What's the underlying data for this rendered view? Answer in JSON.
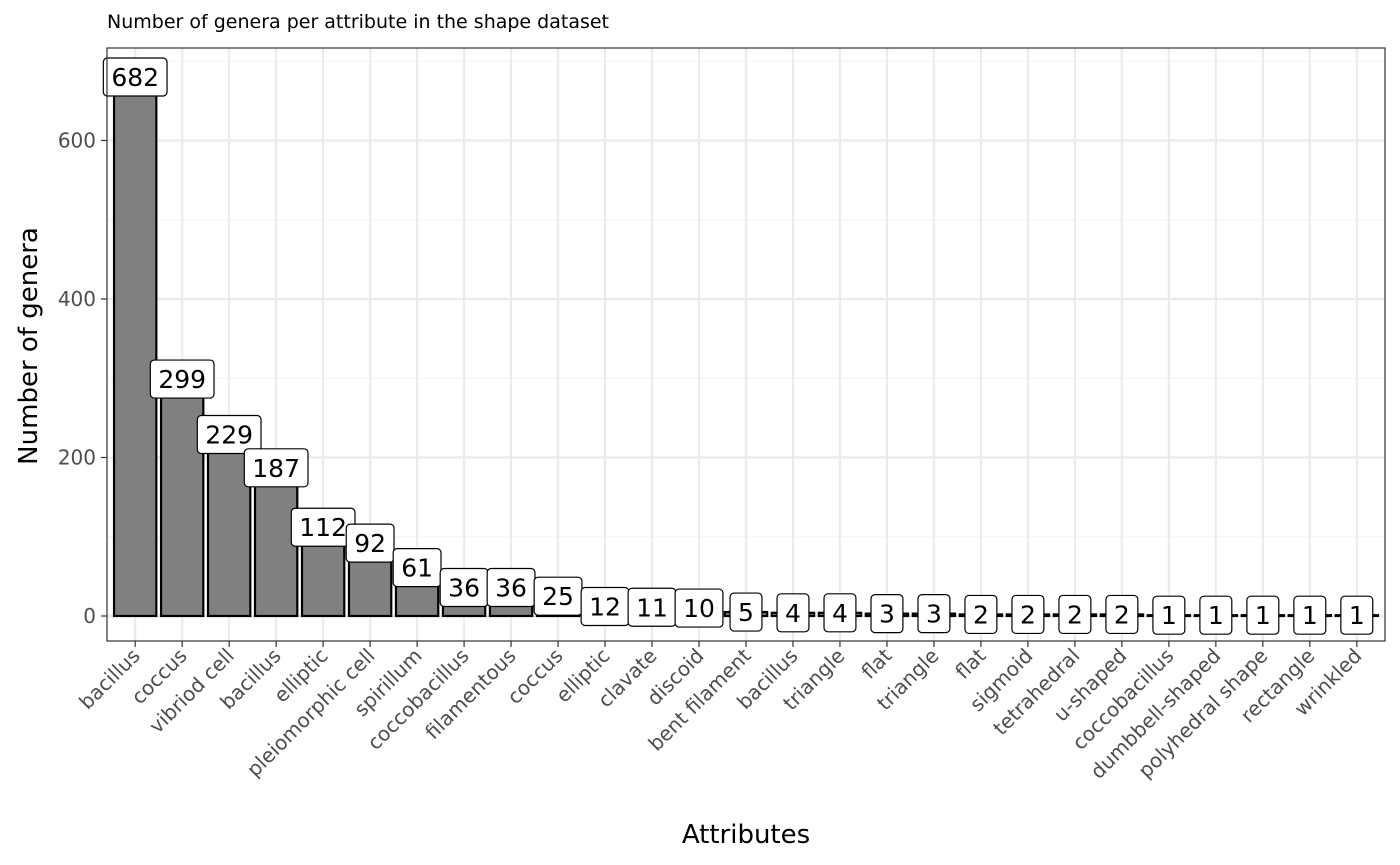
{
  "chart_data": {
    "type": "bar",
    "title": "Number of genera per attribute in the shape dataset",
    "xlabel": "Attributes",
    "ylabel": "Number of genera",
    "categories": [
      "bacillus",
      "coccus",
      "vibriod cell",
      "bacillus",
      "elliptic",
      "pleiomorphic cell",
      "spirillum",
      "coccobacillus",
      "filamentous",
      "coccus",
      "elliptic",
      "clavate",
      "discoid",
      "bent filament",
      "bacillus",
      "triangle",
      "flat",
      "triangle",
      "flat",
      "sigmoid",
      "tetrahedral",
      "u-shaped",
      "coccobacillus",
      "dumbbell-shaped",
      "polyhedral shape",
      "rectangle",
      "wrinkled"
    ],
    "values": [
      682,
      299,
      229,
      187,
      112,
      92,
      61,
      36,
      36,
      25,
      12,
      11,
      10,
      5,
      4,
      4,
      3,
      3,
      2,
      2,
      2,
      2,
      1,
      1,
      1,
      1,
      1
    ],
    "data_labels": [
      "682",
      "299",
      "229",
      "187",
      "112",
      "92",
      "61",
      "36",
      "36",
      "25",
      "12",
      "11",
      "10",
      "5",
      "4",
      "4",
      "3",
      "3",
      "2",
      "2",
      "2",
      "2",
      "1",
      "1",
      "1",
      "1",
      "1"
    ],
    "yticks": [
      0,
      200,
      400,
      600
    ],
    "ytick_labels": [
      "0",
      "200",
      "400",
      "600"
    ],
    "ylim": [
      -36,
      716
    ],
    "grid": true,
    "legend": "none",
    "colors": {
      "bar_fill": "#808080",
      "bar_stroke": "#000000",
      "grid_major": "#ebebeb",
      "grid_minor": "#f5f5f5",
      "panel_border": "#333333",
      "tick_text": "#4d4d4d",
      "label_fill": "#ffffff"
    }
  }
}
